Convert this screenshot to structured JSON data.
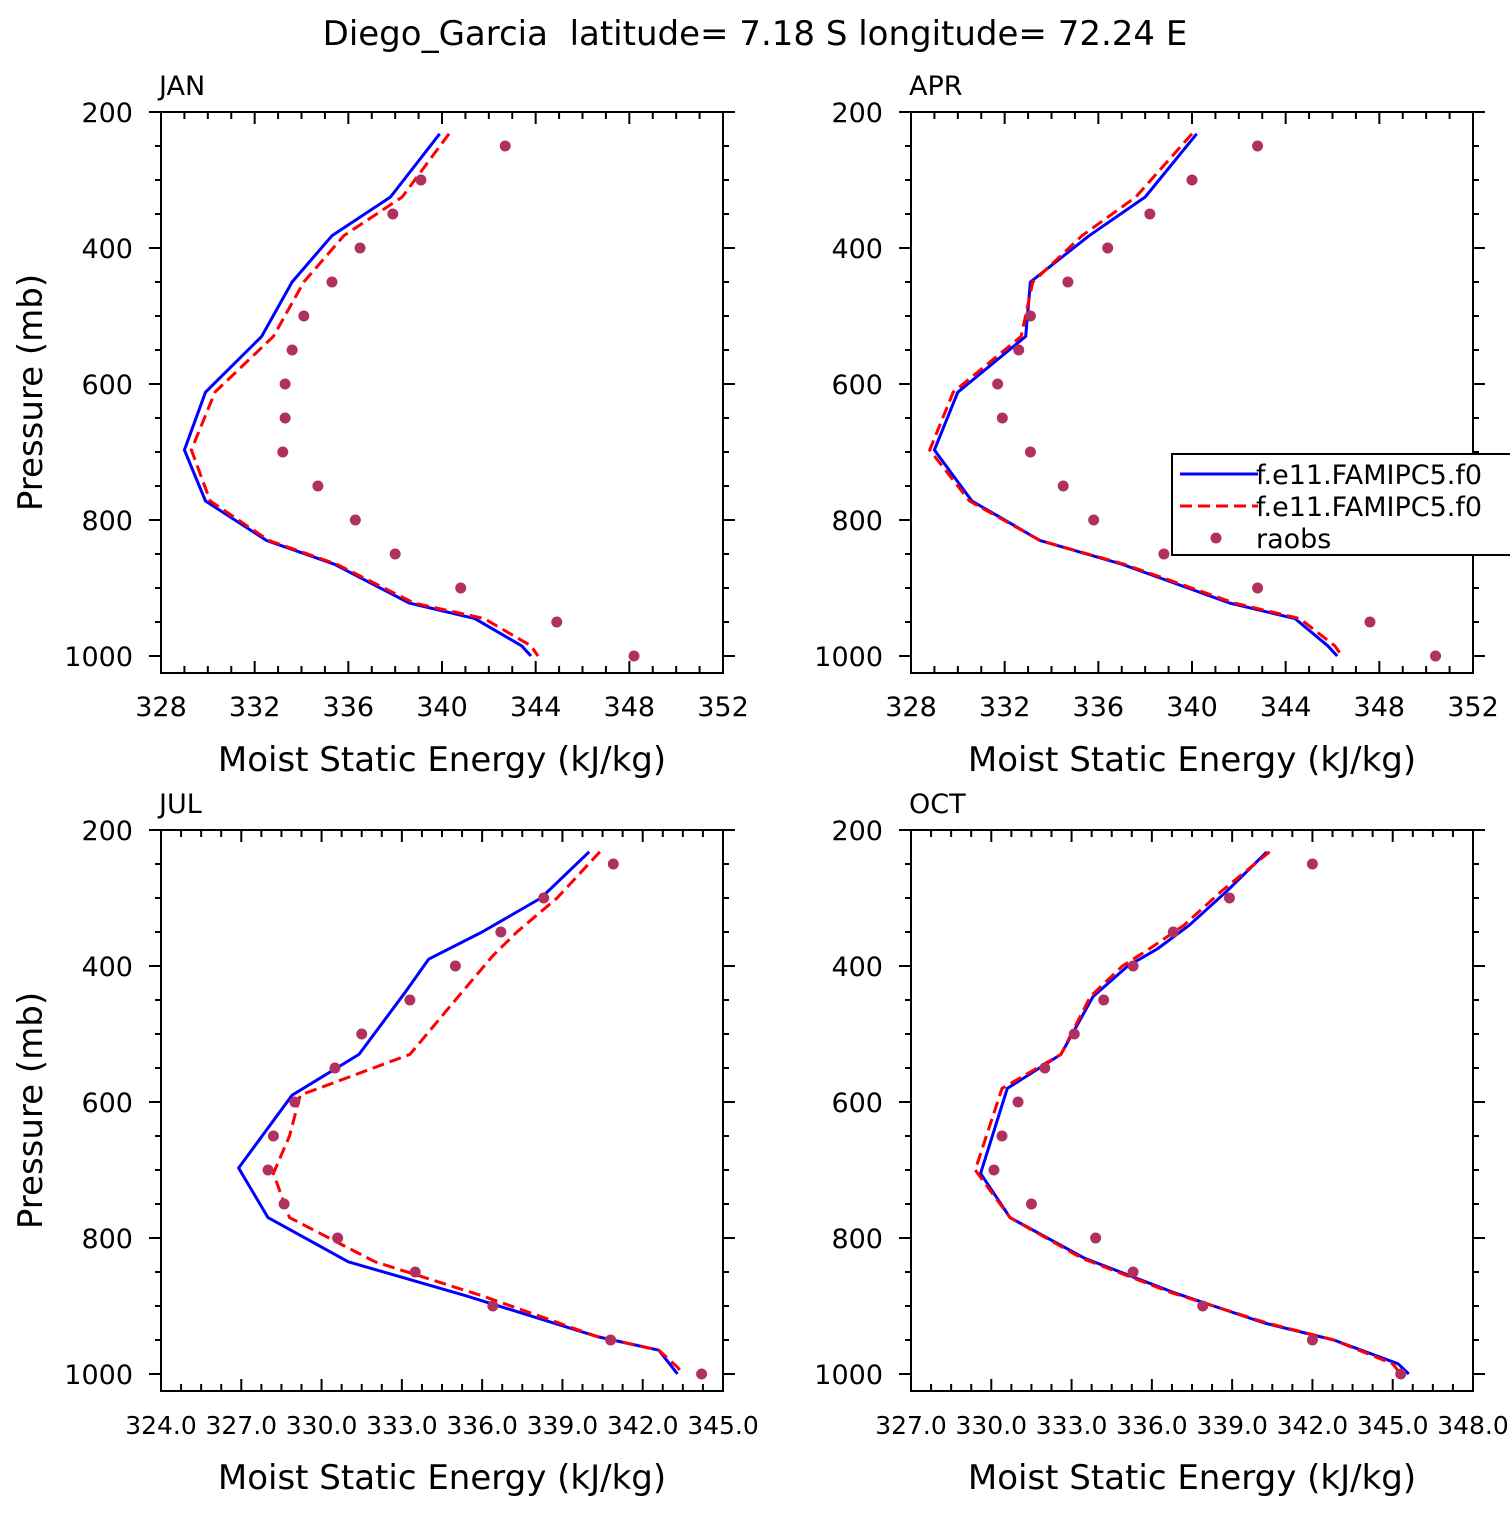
{
  "title": "Diego_Garcia  latitude= 7.18 S longitude= 72.24 E",
  "colors": {
    "model1": "#0000ff",
    "model2": "#ff0000",
    "raobs": "#b03060",
    "axis": "#000000"
  },
  "legend": {
    "entries": [
      {
        "label": "f.e11.FAMIPC5.f0",
        "style": "solid-blue"
      },
      {
        "label": "f.e11.FAMIPC5.f0",
        "style": "dashed-red"
      },
      {
        "label": "raobs",
        "style": "dot"
      }
    ]
  },
  "chart_data": [
    {
      "type": "line",
      "panel_label": "JAN",
      "xlabel": "Moist Static Energy (kJ/kg)",
      "ylabel": "Pressure (mb)",
      "xlim": [
        328,
        352
      ],
      "ylim": [
        1000,
        200
      ],
      "xticks": [
        "328",
        "332",
        "336",
        "340",
        "344",
        "348",
        "352"
      ],
      "yticks": [
        "200",
        "400",
        "600",
        "800",
        "1000"
      ],
      "show_legend": false,
      "series": [
        {
          "style": "solid-blue",
          "x": [
            339.9,
            337.8,
            335.3,
            333.6,
            332.3,
            329.9,
            329.0,
            329.9,
            332.5,
            335.4,
            338.6,
            341.4,
            343.4,
            343.8
          ],
          "y": [
            232,
            325,
            382,
            450,
            530,
            612,
            697,
            772,
            830,
            865,
            922,
            945,
            985,
            1000
          ]
        },
        {
          "style": "dashed-red",
          "x": [
            340.3,
            338.3,
            335.8,
            334.1,
            332.8,
            330.3,
            329.3,
            330.1,
            332.6,
            335.5,
            338.8,
            341.8,
            343.8,
            344.1
          ],
          "y": [
            232,
            325,
            382,
            450,
            530,
            612,
            697,
            772,
            830,
            865,
            922,
            945,
            985,
            1000
          ]
        },
        {
          "style": "dot",
          "x": [
            342.7,
            339.1,
            337.9,
            336.5,
            335.3,
            334.1,
            333.6,
            333.3,
            333.3,
            333.2,
            334.7,
            336.3,
            338.0,
            340.8,
            344.9,
            348.2
          ],
          "y": [
            250,
            300,
            350,
            400,
            450,
            500,
            550,
            600,
            650,
            700,
            750,
            800,
            850,
            900,
            950,
            1000
          ]
        }
      ]
    },
    {
      "type": "line",
      "panel_label": "APR",
      "xlabel": "Moist Static Energy (kJ/kg)",
      "ylabel": "",
      "xlim": [
        328,
        352
      ],
      "ylim": [
        1000,
        200
      ],
      "xticks": [
        "328",
        "332",
        "336",
        "340",
        "344",
        "348",
        "352"
      ],
      "yticks": [
        "200",
        "400",
        "600",
        "800",
        "1000"
      ],
      "show_legend": true,
      "series": [
        {
          "style": "solid-blue",
          "x": [
            340.2,
            338.0,
            335.6,
            333.1,
            332.9,
            330.0,
            329.0,
            330.6,
            333.5,
            337.0,
            341.6,
            344.4,
            345.8,
            346.2
          ],
          "y": [
            232,
            325,
            382,
            450,
            530,
            612,
            697,
            772,
            830,
            865,
            922,
            945,
            985,
            1000
          ]
        },
        {
          "style": "dashed-red",
          "x": [
            340.0,
            337.6,
            335.3,
            333.2,
            332.7,
            329.8,
            328.8,
            330.5,
            333.5,
            337.1,
            341.8,
            344.6,
            346.1,
            346.4
          ],
          "y": [
            232,
            325,
            382,
            450,
            530,
            612,
            697,
            772,
            830,
            865,
            922,
            945,
            985,
            1000
          ]
        },
        {
          "style": "dot",
          "x": [
            342.8,
            340.0,
            338.2,
            336.4,
            334.7,
            333.1,
            332.6,
            331.7,
            331.9,
            333.1,
            334.5,
            335.8,
            338.8,
            342.8,
            347.6,
            350.4
          ],
          "y": [
            250,
            300,
            350,
            400,
            450,
            500,
            550,
            600,
            650,
            700,
            750,
            800,
            850,
            900,
            950,
            1000
          ]
        }
      ]
    },
    {
      "type": "line",
      "panel_label": "JUL",
      "xlabel": "Moist Static Energy (kJ/kg)",
      "ylabel": "Pressure (mb)",
      "xlim": [
        324.0,
        345.0
      ],
      "ylim": [
        1000,
        200
      ],
      "xticks": [
        "324.0",
        "327.0",
        "330.0",
        "333.0",
        "336.0",
        "339.0",
        "342.0",
        "345.0"
      ],
      "yticks": [
        "200",
        "400",
        "600",
        "800",
        "1000"
      ],
      "show_legend": false,
      "series": [
        {
          "style": "solid-blue",
          "x": [
            340.0,
            338.2,
            336.0,
            334.0,
            333.1,
            331.4,
            328.9,
            326.9,
            328.0,
            331.0,
            335.4,
            340.3,
            342.6,
            343.1,
            343.3
          ],
          "y": [
            232,
            300,
            350,
            390,
            440,
            530,
            590,
            697,
            770,
            835,
            885,
            945,
            965,
            990,
            1000
          ]
        },
        {
          "style": "dashed-red",
          "x": [
            340.4,
            338.8,
            337.3,
            336.4,
            335.0,
            333.3,
            329.2,
            328.8,
            328.2,
            328.8,
            332.0,
            336.0,
            340.3,
            342.6,
            343.3,
            343.5
          ],
          "y": [
            232,
            300,
            350,
            385,
            450,
            530,
            590,
            650,
            705,
            770,
            835,
            885,
            945,
            965,
            990,
            1000
          ]
        },
        {
          "style": "dot",
          "x": [
            340.9,
            338.3,
            336.7,
            335.0,
            333.3,
            331.5,
            330.5,
            329.0,
            328.2,
            328.0,
            328.6,
            330.6,
            333.5,
            336.4,
            340.8,
            344.2
          ],
          "y": [
            250,
            300,
            350,
            400,
            450,
            500,
            550,
            600,
            650,
            700,
            750,
            800,
            850,
            900,
            950,
            1000
          ]
        }
      ]
    },
    {
      "type": "line",
      "panel_label": "OCT",
      "xlabel": "Moist Static Energy (kJ/kg)",
      "ylabel": "",
      "xlim": [
        327.0,
        348.0
      ],
      "ylim": [
        1000,
        200
      ],
      "xticks": [
        "327.0",
        "330.0",
        "333.0",
        "336.0",
        "339.0",
        "342.0",
        "345.0",
        "348.0"
      ],
      "yticks": [
        "200",
        "400",
        "600",
        "800",
        "1000"
      ],
      "show_legend": false,
      "series": [
        {
          "style": "solid-blue",
          "x": [
            340.3,
            338.8,
            337.4,
            336.2,
            335.1,
            333.8,
            332.6,
            330.6,
            329.6,
            330.7,
            333.5,
            336.8,
            340.2,
            342.8,
            345.2,
            345.6
          ],
          "y": [
            232,
            290,
            340,
            375,
            400,
            445,
            530,
            580,
            705,
            770,
            830,
            880,
            925,
            950,
            985,
            1000
          ]
        },
        {
          "style": "dashed-red",
          "x": [
            340.4,
            338.6,
            337.2,
            335.9,
            334.9,
            333.7,
            332.6,
            330.4,
            329.4,
            330.7,
            333.4,
            336.7,
            340.3,
            342.8,
            345.0,
            345.3
          ],
          "y": [
            232,
            290,
            340,
            375,
            400,
            445,
            530,
            580,
            700,
            770,
            830,
            880,
            925,
            950,
            985,
            1000
          ]
        },
        {
          "style": "dot",
          "x": [
            342.0,
            338.9,
            336.8,
            335.3,
            334.2,
            333.1,
            332.0,
            331.0,
            330.4,
            330.1,
            331.5,
            333.9,
            335.3,
            337.9,
            342.0,
            345.3
          ],
          "y": [
            250,
            300,
            350,
            400,
            450,
            500,
            550,
            600,
            650,
            700,
            750,
            800,
            850,
            900,
            950,
            1000
          ]
        }
      ]
    }
  ]
}
